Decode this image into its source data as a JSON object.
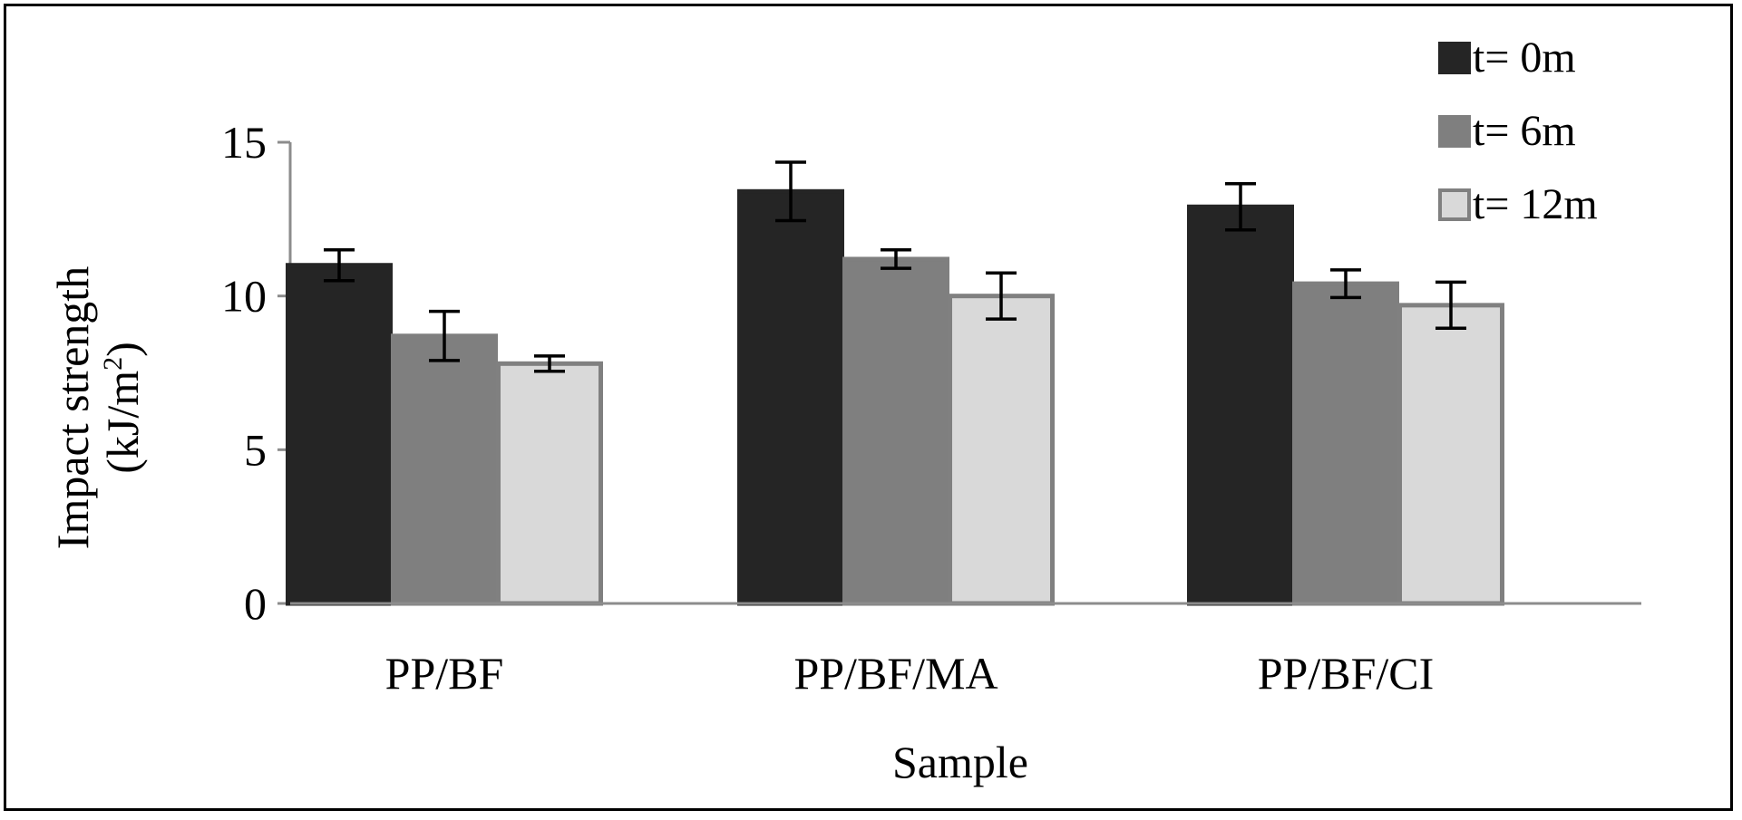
{
  "chart_data": {
    "type": "bar",
    "title": "",
    "xlabel": "Sample",
    "ylabel_line1": "Impact strength",
    "ylabel_line2_prefix": "(kJ/m",
    "ylabel_line2_sup": "2",
    "ylabel_line2_suffix": ")",
    "ylim": [
      0,
      15
    ],
    "yticks": [
      0,
      5,
      10,
      15
    ],
    "ytick_labels": [
      "0",
      "5",
      "10",
      "15"
    ],
    "grid": false,
    "legend_position": "top-right",
    "categories": [
      "PP/BF",
      "PP/BF/MA",
      "PP/BF/CI"
    ],
    "series": [
      {
        "name": "t= 0m",
        "values": [
          11.0,
          13.4,
          12.9
        ],
        "errors": [
          0.5,
          0.95,
          0.75
        ],
        "color": "#252525",
        "stroke": "#252525"
      },
      {
        "name": "t= 6m",
        "values": [
          8.7,
          11.2,
          10.4
        ],
        "errors": [
          0.8,
          0.3,
          0.45
        ],
        "color": "#7f7f7f",
        "stroke": "#7f7f7f"
      },
      {
        "name": "t= 12m",
        "values": [
          7.8,
          10.0,
          9.7
        ],
        "errors": [
          0.25,
          0.75,
          0.75
        ],
        "color": "#d9d9d9",
        "stroke": "#808080"
      }
    ]
  }
}
